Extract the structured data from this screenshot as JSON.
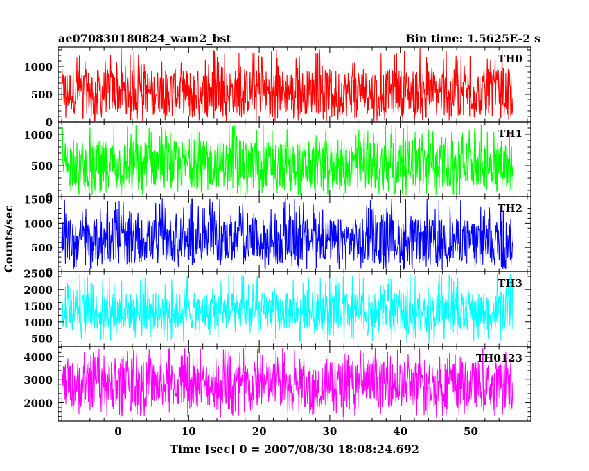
{
  "header": {
    "title": "ae070830180824_wam2_bst",
    "bin_time": "Bin time: 1.5625E-2 s"
  },
  "chart_data": {
    "type": "line",
    "xlabel": "Time [sec] 0 = 2007/08/30 18:08:24.692",
    "ylabel": "Counts/sec",
    "xlim": [
      -8.5,
      58.5
    ],
    "x_range": [
      -8.0,
      56.0
    ],
    "x_ticks": [
      0,
      10,
      20,
      30,
      40,
      50
    ],
    "grid": false,
    "panels": [
      {
        "name": "TH0",
        "color": "#ff0000",
        "ylim": [
          0,
          1350
        ],
        "y_ticks": [
          0,
          500,
          1000
        ],
        "y_tick_labels": [
          "0",
          "500",
          "1000"
        ],
        "typical_low": 150,
        "typical_high": 950,
        "min": 15,
        "max": 1330
      },
      {
        "name": "TH1",
        "color": "#00ff00",
        "ylim": [
          0,
          1200
        ],
        "y_ticks": [
          0,
          500,
          1000
        ],
        "y_tick_labels": [
          "0",
          "500",
          "1000"
        ],
        "typical_low": 150,
        "typical_high": 900,
        "min": 20,
        "max": 1180
      },
      {
        "name": "TH2",
        "color": "#0000ff",
        "ylim": [
          0,
          1550
        ],
        "y_ticks": [
          0,
          500,
          1000,
          1500
        ],
        "y_tick_labels": [
          "0",
          "500",
          "1000",
          "1500"
        ],
        "typical_low": 200,
        "typical_high": 1100,
        "min": 30,
        "max": 1520
      },
      {
        "name": "TH3",
        "color": "#00ffff",
        "ylim": [
          250,
          2550
        ],
        "y_ticks": [
          500,
          1000,
          1500,
          2000,
          2500
        ],
        "y_tick_labels": [
          "500",
          "1000",
          "1500",
          "2000",
          "2500"
        ],
        "typical_low": 750,
        "typical_high": 1900,
        "min": 350,
        "max": 2500
      },
      {
        "name": "TH0123",
        "color": "#ff00ff",
        "ylim": [
          1200,
          4450
        ],
        "y_ticks": [
          2000,
          3000,
          4000
        ],
        "y_tick_labels": [
          "2000",
          "3000",
          "4000"
        ],
        "typical_low": 1800,
        "typical_high": 3800,
        "min": 1350,
        "max": 4400
      }
    ]
  }
}
